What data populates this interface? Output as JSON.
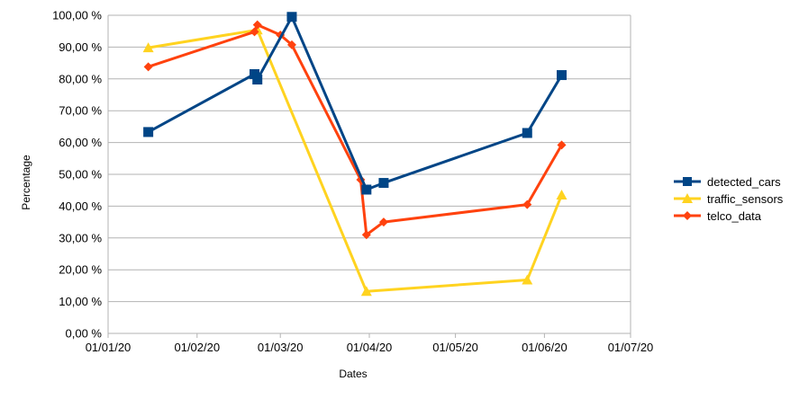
{
  "chart_data": {
    "type": "line",
    "xlabel": "Dates",
    "ylabel": "Percentage",
    "x_ticks": [
      "01/01/20",
      "01/02/20",
      "01/03/20",
      "01/04/20",
      "01/05/20",
      "01/06/20",
      "01/07/20"
    ],
    "x_range": [
      "2020-01-01",
      "2020-07-01"
    ],
    "y_ticks": [
      "0,00 %",
      "10,00 %",
      "20,00 %",
      "30,00 %",
      "40,00 %",
      "50,00 %",
      "60,00 %",
      "70,00 %",
      "80,00 %",
      "90,00 %",
      "100,00 %"
    ],
    "ylim": [
      0,
      100
    ],
    "grid": "horizontal",
    "legend_position": "right",
    "series": [
      {
        "name": "detected_cars",
        "color": "#004586",
        "marker": "square",
        "points": [
          {
            "x": "2020-01-15",
            "y": 63.3
          },
          {
            "x": "2020-02-21",
            "y": 81.5
          },
          {
            "x": "2020-02-22",
            "y": 79.8
          },
          {
            "x": "2020-03-05",
            "y": 99.5
          },
          {
            "x": "2020-03-31",
            "y": 45.2
          },
          {
            "x": "2020-04-06",
            "y": 47.3
          },
          {
            "x": "2020-05-26",
            "y": 63.0
          },
          {
            "x": "2020-06-07",
            "y": 81.2
          }
        ]
      },
      {
        "name": "traffic_sensors",
        "color": "#ffd320",
        "marker": "triangle",
        "points": [
          {
            "x": "2020-01-15",
            "y": 89.8
          },
          {
            "x": "2020-02-22",
            "y": 95.4
          },
          {
            "x": "2020-03-31",
            "y": 13.2
          },
          {
            "x": "2020-05-26",
            "y": 16.8
          },
          {
            "x": "2020-06-07",
            "y": 43.5
          }
        ]
      },
      {
        "name": "telco_data",
        "color": "#ff420e",
        "marker": "diamond",
        "points": [
          {
            "x": "2020-01-15",
            "y": 83.8
          },
          {
            "x": "2020-02-21",
            "y": 94.8
          },
          {
            "x": "2020-02-22",
            "y": 97.0
          },
          {
            "x": "2020-03-01",
            "y": 93.8
          },
          {
            "x": "2020-03-05",
            "y": 90.7
          },
          {
            "x": "2020-03-29",
            "y": 48.3
          },
          {
            "x": "2020-03-31",
            "y": 31.0
          },
          {
            "x": "2020-04-06",
            "y": 35.0
          },
          {
            "x": "2020-05-26",
            "y": 40.5
          },
          {
            "x": "2020-06-07",
            "y": 59.2
          }
        ]
      }
    ]
  }
}
